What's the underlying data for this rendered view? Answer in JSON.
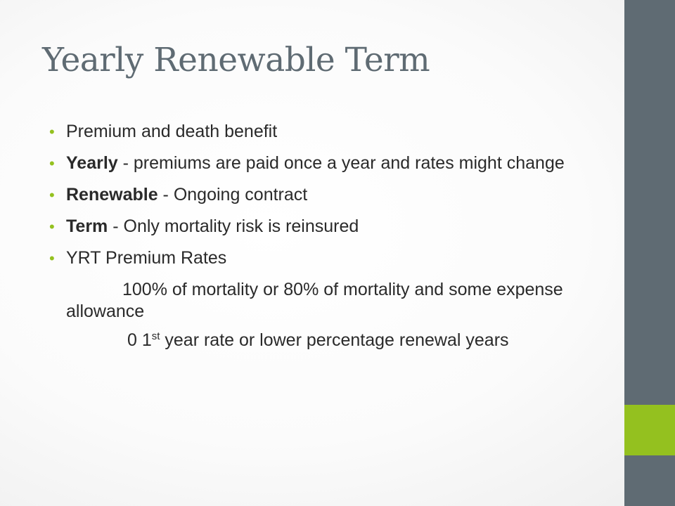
{
  "slide": {
    "title": "Yearly Renewable Term",
    "colors": {
      "title": "#5f6b73",
      "side_bar": "#5f6b73",
      "accent": "#94c11f",
      "text": "#2a2a2a"
    },
    "bullets": [
      {
        "text": "Premium and death benefit"
      },
      {
        "term": "Yearly",
        "text": " - premiums are paid once a year and rates might change"
      },
      {
        "term": "Renewable",
        "text": " - Ongoing contract"
      },
      {
        "term": "Term",
        "text": " - Only mortality risk is reinsured"
      },
      {
        "text": "YRT Premium Rates"
      }
    ],
    "sub_lines": {
      "first": "100%  of mortality or 80% of mortality and some expense allowance",
      "second_prefix": "0 1",
      "second_sup": "st",
      "second_rest": " year rate or lower percentage renewal years"
    }
  }
}
